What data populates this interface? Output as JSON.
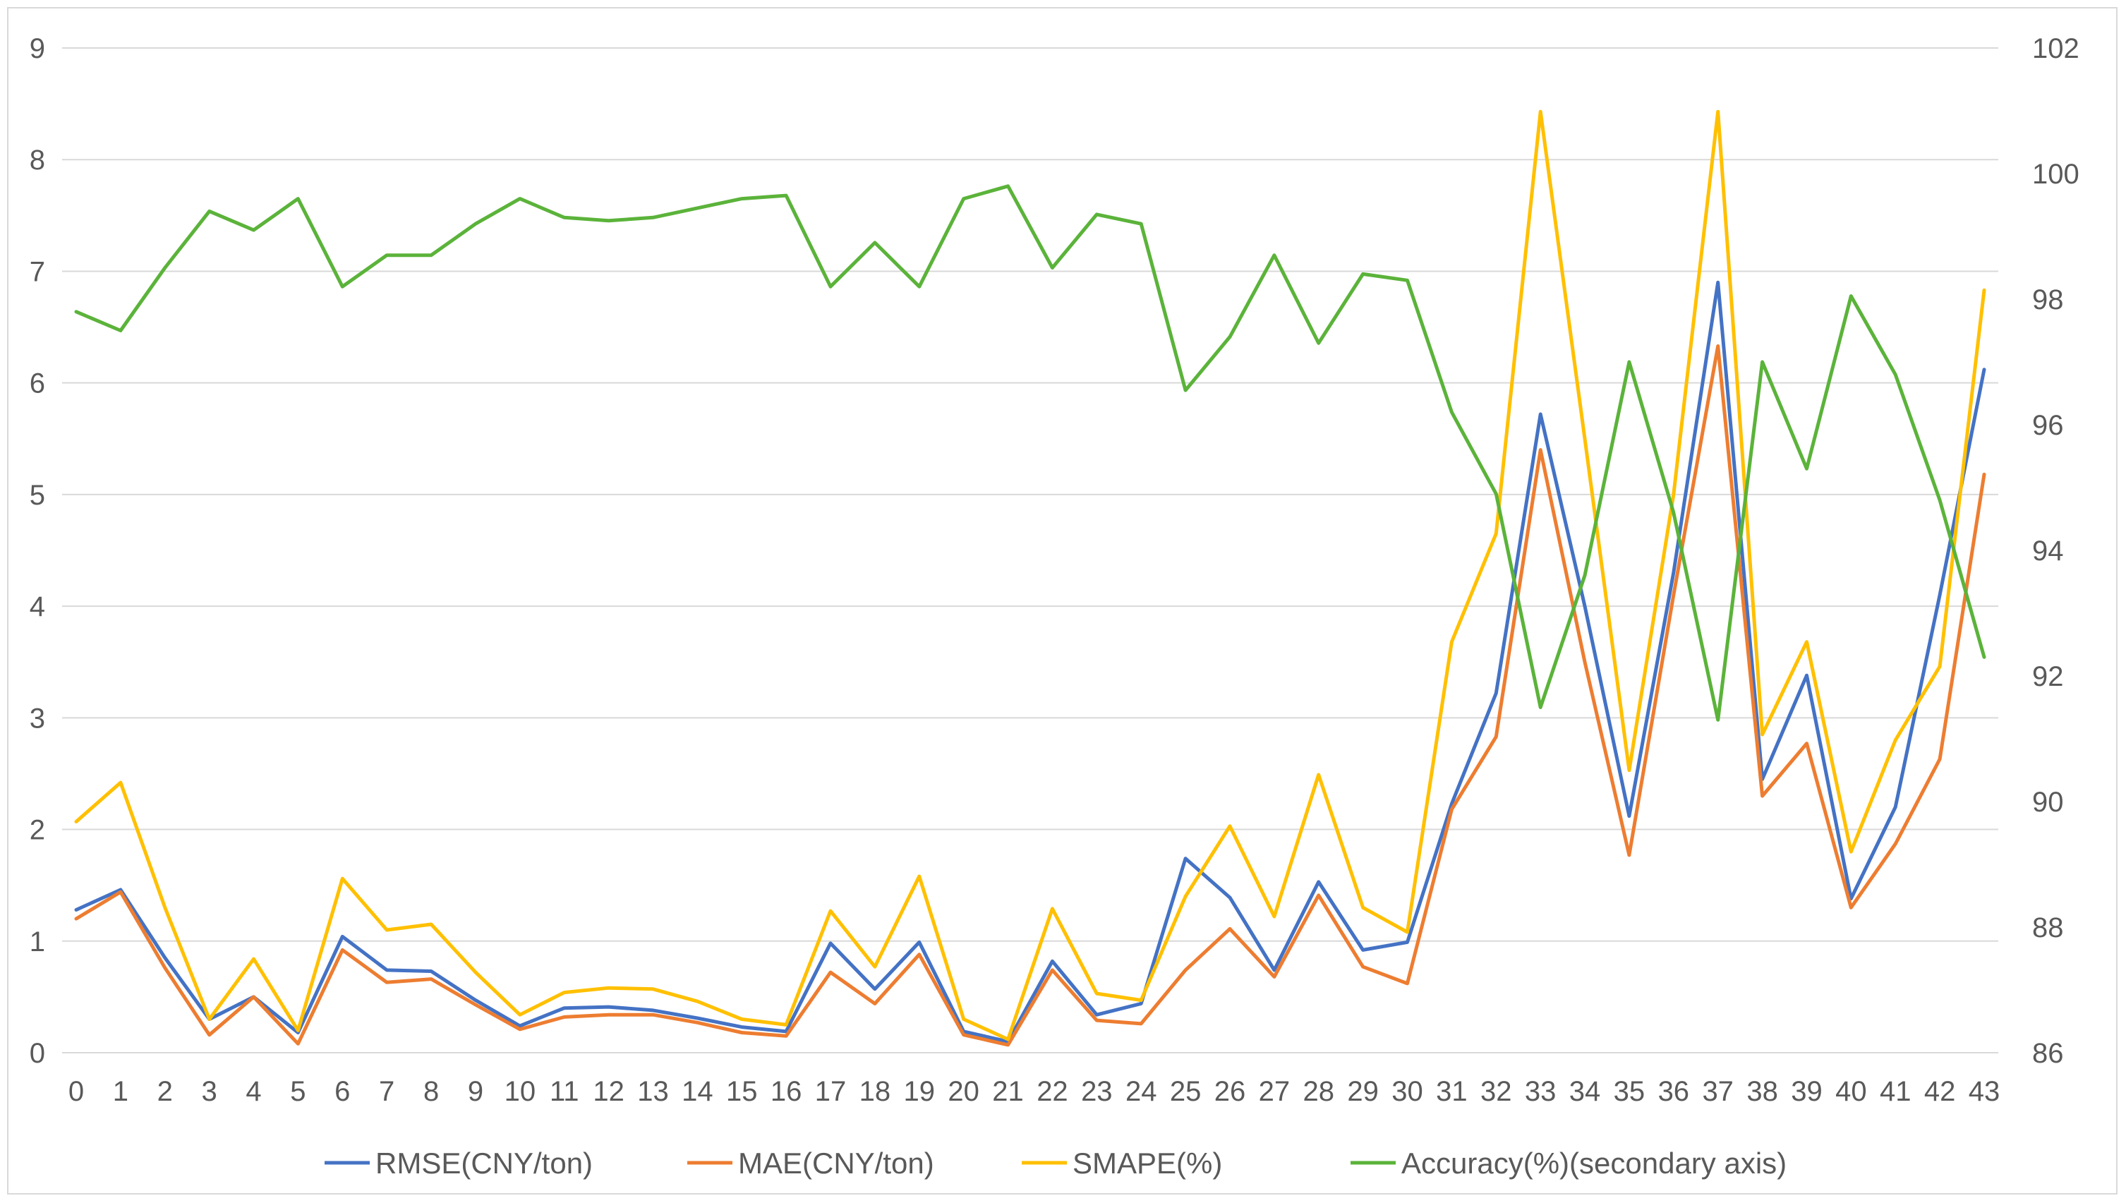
{
  "chart_data": {
    "type": "line",
    "title": "",
    "xlabel": "",
    "ylabel": "",
    "y2label": "",
    "x": [
      0,
      1,
      2,
      3,
      4,
      5,
      6,
      7,
      8,
      9,
      10,
      11,
      12,
      13,
      14,
      15,
      16,
      17,
      18,
      19,
      20,
      21,
      22,
      23,
      24,
      25,
      26,
      27,
      28,
      29,
      30,
      31,
      32,
      33,
      34,
      35,
      36,
      37,
      38,
      39,
      40,
      41,
      42,
      43
    ],
    "ylim": [
      0,
      9
    ],
    "yticks": [
      0,
      1,
      2,
      3,
      4,
      5,
      6,
      7,
      8,
      9
    ],
    "y2lim": [
      86,
      102
    ],
    "y2ticks": [
      86,
      88,
      90,
      92,
      94,
      96,
      98,
      100,
      102
    ],
    "grid": true,
    "legend_position": "bottom",
    "series": [
      {
        "name": "RMSE(CNY/ton)",
        "axis": "primary",
        "color": "#4472C4",
        "values": [
          1.28,
          1.46,
          0.85,
          0.3,
          0.5,
          0.18,
          1.04,
          0.74,
          0.73,
          0.47,
          0.24,
          0.4,
          0.41,
          0.38,
          0.31,
          0.23,
          0.19,
          0.98,
          0.57,
          0.99,
          0.19,
          0.1,
          0.82,
          0.34,
          0.44,
          1.74,
          1.39,
          0.74,
          1.53,
          0.92,
          0.99,
          2.23,
          3.22,
          5.72,
          4.0,
          2.12,
          4.3,
          6.9,
          2.45,
          3.38,
          1.38,
          2.2,
          4.1,
          6.12
        ]
      },
      {
        "name": "MAE(CNY/ton)",
        "axis": "primary",
        "color": "#ED7D31",
        "values": [
          1.2,
          1.44,
          0.76,
          0.16,
          0.5,
          0.08,
          0.92,
          0.63,
          0.66,
          0.43,
          0.21,
          0.32,
          0.34,
          0.34,
          0.27,
          0.18,
          0.15,
          0.72,
          0.44,
          0.88,
          0.16,
          0.07,
          0.74,
          0.29,
          0.26,
          0.74,
          1.11,
          0.68,
          1.41,
          0.77,
          0.62,
          2.18,
          2.83,
          5.4,
          3.5,
          1.77,
          4.1,
          6.33,
          2.3,
          2.77,
          1.3,
          1.87,
          2.63,
          5.18
        ]
      },
      {
        "name": "SMAPE(%)",
        "axis": "primary",
        "color": "#FFC000",
        "values": [
          2.07,
          2.42,
          1.3,
          0.3,
          0.84,
          0.2,
          1.56,
          1.1,
          1.15,
          0.72,
          0.34,
          0.54,
          0.58,
          0.57,
          0.46,
          0.3,
          0.25,
          1.27,
          0.77,
          1.58,
          0.3,
          0.12,
          1.29,
          0.53,
          0.47,
          1.4,
          2.03,
          1.22,
          2.49,
          1.3,
          1.08,
          3.68,
          4.65,
          8.43,
          5.5,
          2.53,
          5.0,
          8.43,
          2.85,
          3.68,
          1.8,
          2.8,
          3.46,
          6.83
        ]
      },
      {
        "name": "Accuracy(%)(secondary axis)",
        "axis": "secondary",
        "color": "#5BB33A",
        "values": [
          97.8,
          97.5,
          98.5,
          99.4,
          99.1,
          99.6,
          98.2,
          98.7,
          98.7,
          99.2,
          99.6,
          99.3,
          99.25,
          99.3,
          99.45,
          99.6,
          99.65,
          98.2,
          98.9,
          98.2,
          99.6,
          99.8,
          98.5,
          99.35,
          99.2,
          96.55,
          97.4,
          98.7,
          97.3,
          98.4,
          98.3,
          96.2,
          94.9,
          91.5,
          93.6,
          97.0,
          94.6,
          91.3,
          97.0,
          95.3,
          98.05,
          96.8,
          94.8,
          92.3
        ]
      }
    ]
  }
}
